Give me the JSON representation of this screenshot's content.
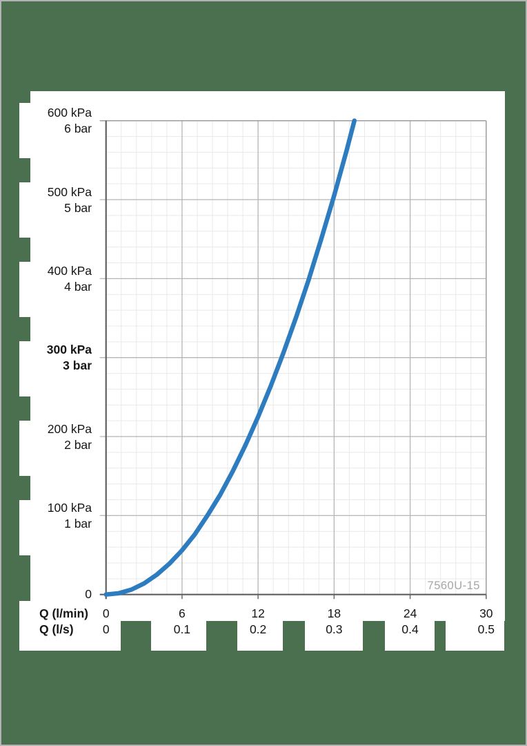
{
  "page": {
    "background_color": "#4a7050",
    "page_border_color": "#b3b3b3",
    "panel_color": "#ffffff"
  },
  "model_label": "7560U-15",
  "chart_data": {
    "type": "line",
    "title": "",
    "x_axis": {
      "label_lmin": "Q (l/min)",
      "label_ls": "Q (l/s)",
      "range_lmin": [
        0,
        30
      ],
      "major_step_lmin": 6,
      "minor_step_lmin": 1.2,
      "ticks_lmin": [
        "0",
        "6",
        "12",
        "18",
        "24",
        "30"
      ],
      "ticks_ls": [
        "0",
        "0.1",
        "0.2",
        "0.3",
        "0.4",
        "0.5"
      ]
    },
    "y_axis": {
      "range_kpa": [
        0,
        600
      ],
      "major_step_kpa": 100,
      "minor_step_kpa": 20,
      "ticks_kpa": [
        "600 kPa",
        "500 kPa",
        "400 kPa",
        "300 kPa",
        "200 kPa",
        "100 kPa",
        "0"
      ],
      "ticks_bar": [
        "6 bar",
        "5 bar",
        "4 bar",
        "3 bar",
        "2 bar",
        "1 bar",
        ""
      ],
      "bold_tick_index": 3
    },
    "grid": {
      "minor_color": "#e9e9e9",
      "major_color": "#b5b5b5",
      "frame_color": "#9d9d9d",
      "axis_color": "#5f5f5f",
      "tick_color": "#6b6b6b"
    },
    "series": [
      {
        "name": "pressure-drop-vs-flow-curve",
        "color": "#2e7cc0",
        "stroke_width": 6.5,
        "points_q_lmin_p_kpa": [
          [
            0,
            0
          ],
          [
            1,
            1.6
          ],
          [
            2,
            6.2
          ],
          [
            3,
            14
          ],
          [
            4,
            25
          ],
          [
            5,
            39
          ],
          [
            6,
            56
          ],
          [
            7,
            76
          ],
          [
            8,
            100
          ],
          [
            9,
            126
          ],
          [
            10,
            156
          ],
          [
            11,
            189
          ],
          [
            12,
            225
          ],
          [
            13,
            264
          ],
          [
            14,
            306
          ],
          [
            15,
            351
          ],
          [
            16,
            399
          ],
          [
            17,
            451
          ],
          [
            18,
            505
          ],
          [
            19,
            563
          ],
          [
            19.6,
            600
          ]
        ]
      }
    ],
    "legend": "none"
  }
}
